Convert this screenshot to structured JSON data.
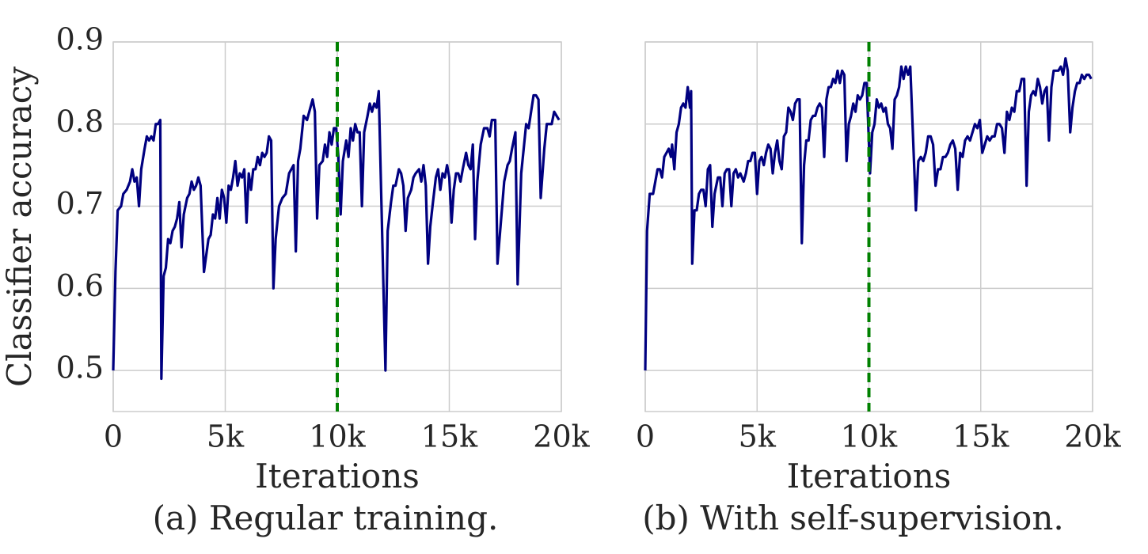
{
  "chart_data": [
    {
      "type": "line",
      "title": "(a) Regular training.",
      "xlabel": "Iterations",
      "ylabel": "Classifier accuracy",
      "xlim": [
        0,
        20000
      ],
      "ylim": [
        0.45,
        0.9
      ],
      "xticks": [
        0,
        {
          "value": 5000,
          "label": "5k"
        },
        {
          "value": 10000,
          "label": "10k"
        },
        {
          "value": 15000,
          "label": "15k"
        },
        {
          "value": 20000,
          "label": "20k"
        }
      ],
      "yticks": [
        0.5,
        0.6,
        0.7,
        0.8,
        0.9
      ],
      "show_yticklabels": true,
      "grid": true,
      "vline": {
        "x": 10000,
        "color": "#008000"
      },
      "series": [
        {
          "color": "#000080",
          "x": [
            0,
            100,
            200,
            350,
            450,
            600,
            750,
            850,
            950,
            1050,
            1150,
            1250,
            1400,
            1500,
            1600,
            1700,
            1800,
            1900,
            2000,
            2100,
            2150,
            2250,
            2350,
            2450,
            2550,
            2650,
            2750,
            2850,
            2950,
            3050,
            3150,
            3300,
            3400,
            3500,
            3600,
            3700,
            3800,
            3900,
            4050,
            4150,
            4250,
            4350,
            4450,
            4550,
            4650,
            4750,
            4850,
            4950,
            5050,
            5150,
            5250,
            5350,
            5450,
            5550,
            5650,
            5750,
            5850,
            5950,
            6050,
            6150,
            6250,
            6350,
            6450,
            6550,
            6650,
            6750,
            6850,
            6950,
            7050,
            7150,
            7250,
            7400,
            7550,
            7700,
            7850,
            7950,
            8050,
            8150,
            8250,
            8350,
            8500,
            8650,
            8750,
            8900,
            9000,
            9100,
            9200,
            9350,
            9450,
            9550,
            9650,
            9750,
            9850,
            9950,
            10050,
            10150,
            10250,
            10400,
            10500,
            10600,
            10700,
            10800,
            10900,
            11000,
            11100,
            11200,
            11350,
            11450,
            11550,
            11650,
            11750,
            11850,
            12150,
            12250,
            12400,
            12500,
            12600,
            12750,
            12850,
            12950,
            13050,
            13150,
            13300,
            13400,
            13500,
            13650,
            13750,
            13850,
            13950,
            14050,
            14150,
            14250,
            14400,
            14500,
            14600,
            14700,
            14800,
            14900,
            15000,
            15100,
            15200,
            15300,
            15400,
            15500,
            15600,
            15750,
            15850,
            15950,
            16050,
            16150,
            16250,
            16400,
            16550,
            16700,
            16800,
            16900,
            17050,
            17150,
            17300,
            17450,
            17600,
            17700,
            17800,
            17950,
            18050,
            18210,
            18320,
            18430,
            18540,
            18650,
            18760,
            18870,
            18980,
            19080,
            19240,
            19350,
            19460,
            19570,
            19680,
            19790,
            19900
          ],
          "values": [
            0.5,
            0.62,
            0.695,
            0.7,
            0.715,
            0.72,
            0.73,
            0.745,
            0.73,
            0.735,
            0.7,
            0.745,
            0.77,
            0.785,
            0.78,
            0.785,
            0.78,
            0.8,
            0.8,
            0.805,
            0.49,
            0.615,
            0.625,
            0.66,
            0.655,
            0.67,
            0.675,
            0.685,
            0.705,
            0.65,
            0.69,
            0.71,
            0.715,
            0.73,
            0.72,
            0.725,
            0.735,
            0.725,
            0.62,
            0.64,
            0.66,
            0.665,
            0.69,
            0.685,
            0.71,
            0.685,
            0.72,
            0.71,
            0.68,
            0.725,
            0.72,
            0.735,
            0.755,
            0.725,
            0.74,
            0.735,
            0.745,
            0.68,
            0.74,
            0.72,
            0.745,
            0.745,
            0.76,
            0.75,
            0.765,
            0.76,
            0.765,
            0.785,
            0.78,
            0.6,
            0.66,
            0.7,
            0.71,
            0.715,
            0.74,
            0.745,
            0.75,
            0.645,
            0.755,
            0.77,
            0.81,
            0.805,
            0.815,
            0.83,
            0.815,
            0.685,
            0.75,
            0.755,
            0.775,
            0.76,
            0.79,
            0.775,
            0.795,
            0.795,
            0.76,
            0.69,
            0.755,
            0.78,
            0.76,
            0.795,
            0.78,
            0.8,
            0.79,
            0.79,
            0.7,
            0.79,
            0.81,
            0.825,
            0.815,
            0.825,
            0.82,
            0.84,
            0.5,
            0.67,
            0.705,
            0.725,
            0.725,
            0.745,
            0.74,
            0.725,
            0.67,
            0.71,
            0.72,
            0.735,
            0.74,
            0.745,
            0.73,
            0.75,
            0.725,
            0.63,
            0.675,
            0.7,
            0.735,
            0.745,
            0.72,
            0.74,
            0.735,
            0.75,
            0.735,
            0.68,
            0.72,
            0.74,
            0.74,
            0.73,
            0.745,
            0.765,
            0.75,
            0.745,
            0.775,
            0.66,
            0.73,
            0.775,
            0.795,
            0.795,
            0.785,
            0.805,
            0.805,
            0.63,
            0.68,
            0.73,
            0.75,
            0.755,
            0.77,
            0.79,
            0.605,
            0.74,
            0.77,
            0.8,
            0.795,
            0.815,
            0.835,
            0.835,
            0.83,
            0.71,
            0.77,
            0.8,
            0.8,
            0.8,
            0.815,
            0.81,
            0.805
          ]
        }
      ]
    },
    {
      "type": "line",
      "title": "(b) With self-supervision.",
      "xlabel": "Iterations",
      "xlim": [
        0,
        20000
      ],
      "ylim": [
        0.45,
        0.9
      ],
      "xticks": [
        0,
        {
          "value": 5000,
          "label": "5k"
        },
        {
          "value": 10000,
          "label": "10k"
        },
        {
          "value": 15000,
          "label": "15k"
        },
        {
          "value": 20000,
          "label": "20k"
        }
      ],
      "yticks": [
        0.5,
        0.6,
        0.7,
        0.8,
        0.9
      ],
      "show_yticklabels": false,
      "grid": true,
      "vline": {
        "x": 10000,
        "color": "#008000"
      },
      "series": [
        {
          "color": "#000080",
          "x": [
            0,
            80,
            200,
            350,
            450,
            550,
            650,
            750,
            850,
            950,
            1050,
            1150,
            1200,
            1300,
            1400,
            1500,
            1600,
            1700,
            1800,
            1900,
            2000,
            2050,
            2100,
            2200,
            2300,
            2400,
            2500,
            2600,
            2700,
            2800,
            2900,
            3000,
            3100,
            3250,
            3350,
            3450,
            3550,
            3650,
            3750,
            3850,
            3950,
            4050,
            4150,
            4250,
            4400,
            4500,
            4600,
            4700,
            4800,
            4900,
            5000,
            5100,
            5200,
            5300,
            5400,
            5500,
            5600,
            5700,
            5800,
            5900,
            6000,
            6100,
            6200,
            6300,
            6400,
            6500,
            6600,
            6700,
            6800,
            6900,
            7000,
            7100,
            7200,
            7300,
            7400,
            7500,
            7600,
            7700,
            7800,
            7900,
            8000,
            8100,
            8200,
            8300,
            8400,
            8500,
            8600,
            8700,
            8800,
            8900,
            9000,
            9100,
            9200,
            9300,
            9400,
            9500,
            9600,
            9700,
            9800,
            9900,
            10050,
            10150,
            10250,
            10350,
            10450,
            10550,
            10650,
            10750,
            10850,
            10950,
            11050,
            11150,
            11250,
            11350,
            11450,
            11550,
            11650,
            11750,
            11850,
            12100,
            12210,
            12320,
            12430,
            12540,
            12650,
            12760,
            12870,
            12980,
            13090,
            13200,
            13310,
            13420,
            13530,
            13640,
            13750,
            13860,
            13970,
            14080,
            14190,
            14300,
            14410,
            14520,
            14630,
            14740,
            14850,
            14960,
            15070,
            15180,
            15290,
            15400,
            15510,
            15620,
            15730,
            15840,
            15950,
            16060,
            16170,
            16280,
            16390,
            16500,
            16610,
            16720,
            16830,
            16940,
            17050,
            17150,
            17250,
            17350,
            17450,
            17550,
            17650,
            17750,
            17850,
            17950,
            18050,
            18160,
            18260,
            18370,
            18470,
            18580,
            18680,
            18790,
            18890,
            19000,
            19100,
            19210,
            19310,
            19420,
            19520,
            19630,
            19730,
            19840,
            19940
          ],
          "values": [
            0.5,
            0.67,
            0.715,
            0.715,
            0.73,
            0.745,
            0.745,
            0.735,
            0.76,
            0.765,
            0.77,
            0.76,
            0.775,
            0.745,
            0.79,
            0.8,
            0.82,
            0.825,
            0.82,
            0.845,
            0.82,
            0.84,
            0.63,
            0.695,
            0.695,
            0.715,
            0.72,
            0.72,
            0.7,
            0.745,
            0.75,
            0.675,
            0.715,
            0.735,
            0.735,
            0.7,
            0.74,
            0.745,
            0.745,
            0.7,
            0.74,
            0.745,
            0.735,
            0.74,
            0.73,
            0.74,
            0.755,
            0.755,
            0.765,
            0.765,
            0.715,
            0.755,
            0.76,
            0.75,
            0.765,
            0.775,
            0.77,
            0.74,
            0.765,
            0.78,
            0.755,
            0.745,
            0.785,
            0.79,
            0.82,
            0.815,
            0.805,
            0.825,
            0.83,
            0.83,
            0.655,
            0.75,
            0.78,
            0.78,
            0.805,
            0.81,
            0.81,
            0.82,
            0.825,
            0.82,
            0.76,
            0.83,
            0.845,
            0.845,
            0.855,
            0.85,
            0.865,
            0.85,
            0.865,
            0.86,
            0.755,
            0.8,
            0.81,
            0.825,
            0.815,
            0.835,
            0.83,
            0.835,
            0.85,
            0.85,
            0.74,
            0.79,
            0.8,
            0.83,
            0.82,
            0.825,
            0.815,
            0.82,
            0.8,
            0.795,
            0.77,
            0.83,
            0.835,
            0.845,
            0.87,
            0.855,
            0.87,
            0.86,
            0.87,
            0.695,
            0.755,
            0.76,
            0.755,
            0.765,
            0.785,
            0.785,
            0.775,
            0.725,
            0.745,
            0.745,
            0.76,
            0.76,
            0.765,
            0.775,
            0.78,
            0.77,
            0.72,
            0.765,
            0.76,
            0.78,
            0.785,
            0.78,
            0.79,
            0.8,
            0.795,
            0.805,
            0.765,
            0.775,
            0.785,
            0.78,
            0.785,
            0.785,
            0.8,
            0.8,
            0.795,
            0.765,
            0.815,
            0.805,
            0.82,
            0.815,
            0.84,
            0.84,
            0.855,
            0.855,
            0.725,
            0.815,
            0.835,
            0.84,
            0.835,
            0.855,
            0.845,
            0.825,
            0.84,
            0.845,
            0.78,
            0.845,
            0.865,
            0.865,
            0.865,
            0.87,
            0.86,
            0.88,
            0.865,
            0.79,
            0.82,
            0.84,
            0.85,
            0.85,
            0.86,
            0.855,
            0.86,
            0.86,
            0.855
          ]
        }
      ]
    }
  ]
}
